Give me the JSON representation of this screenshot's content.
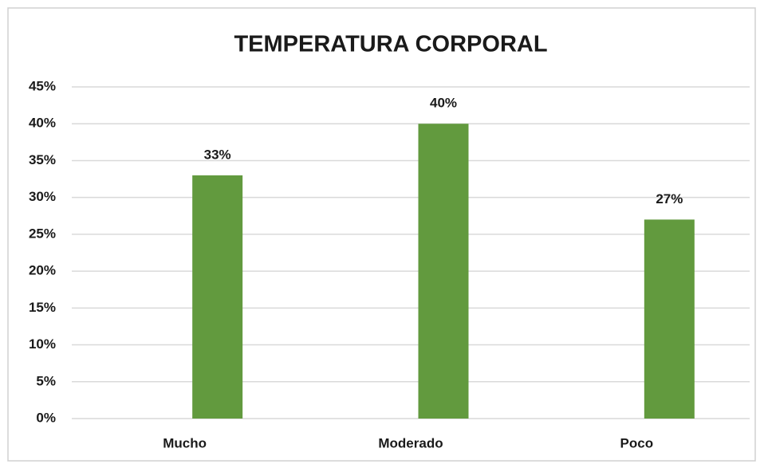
{
  "chart_data": {
    "type": "bar",
    "title": "TEMPERATURA CORPORAL",
    "categories": [
      "Mucho",
      "Moderado",
      "Poco"
    ],
    "values": [
      33,
      40,
      27
    ],
    "value_labels": [
      "33%",
      "40%",
      "27%"
    ],
    "color": "#629a3e",
    "ylim": [
      0,
      45
    ],
    "yticks": [
      {
        "value": 0,
        "label": "0%"
      },
      {
        "value": 5,
        "label": "5%"
      },
      {
        "value": 10,
        "label": "10%"
      },
      {
        "value": 15,
        "label": "15%"
      },
      {
        "value": 20,
        "label": "20%"
      },
      {
        "value": 25,
        "label": "25%"
      },
      {
        "value": 30,
        "label": "30%"
      },
      {
        "value": 35,
        "label": "35%"
      },
      {
        "value": 40,
        "label": "40%"
      },
      {
        "value": 45,
        "label": "45%"
      }
    ],
    "grid": true
  }
}
